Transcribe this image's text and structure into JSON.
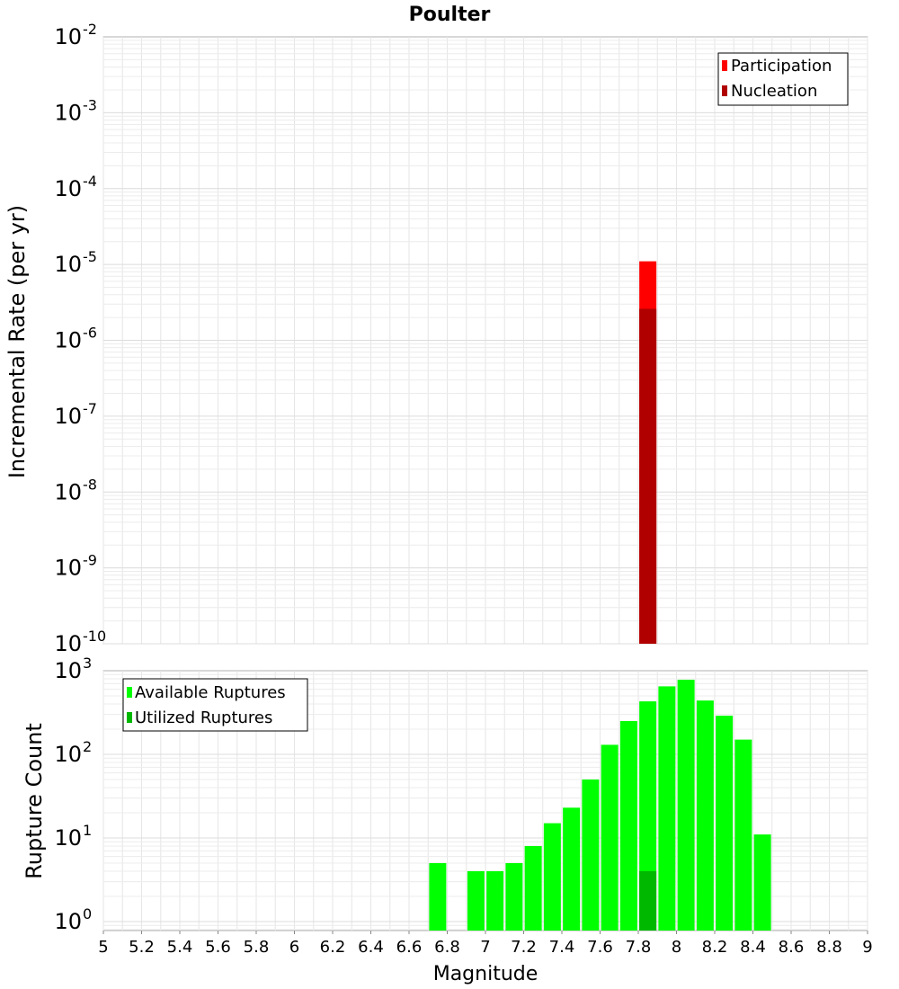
{
  "chart_data": [
    {
      "type": "bar",
      "title": "Poulter",
      "xlabel": "",
      "ylabel": "Incremental Rate (per yr)",
      "yscale": "log",
      "ylim": [
        1e-10,
        0.01
      ],
      "xlim": [
        5,
        9
      ],
      "grid": true,
      "legend_position": "top-right",
      "yticks": [
        {
          "base": "10",
          "exp": "-2",
          "value": 0.01
        },
        {
          "base": "10",
          "exp": "-3",
          "value": 0.001
        },
        {
          "base": "10",
          "exp": "-4",
          "value": 0.0001
        },
        {
          "base": "10",
          "exp": "-5",
          "value": 1e-05
        },
        {
          "base": "10",
          "exp": "-6",
          "value": 1e-06
        },
        {
          "base": "10",
          "exp": "-7",
          "value": 1e-07
        },
        {
          "base": "10",
          "exp": "-8",
          "value": 1e-08
        },
        {
          "base": "10",
          "exp": "-9",
          "value": 1e-09
        },
        {
          "base": "10",
          "exp": "-10",
          "value": 1e-10
        }
      ],
      "series": [
        {
          "name": "Participation",
          "color": "#ff0000",
          "x": [
            7.85
          ],
          "values": [
            1.1e-05
          ]
        },
        {
          "name": "Nucleation",
          "color": "#b00000",
          "x": [
            7.85
          ],
          "values": [
            2.6e-06
          ]
        }
      ]
    },
    {
      "type": "bar",
      "title": "",
      "xlabel": "Magnitude",
      "ylabel": "Rupture Count",
      "yscale": "log",
      "ylim": [
        0.78,
        1000
      ],
      "xlim": [
        5,
        9
      ],
      "grid": true,
      "legend_position": "top-left",
      "xticks": [
        "5",
        "5.2",
        "5.4",
        "5.6",
        "5.8",
        "6",
        "6.2",
        "6.4",
        "6.6",
        "6.8",
        "7",
        "7.2",
        "7.4",
        "7.6",
        "7.8",
        "8",
        "8.2",
        "8.4",
        "8.6",
        "8.8",
        "9"
      ],
      "yticks": [
        {
          "base": "10",
          "exp": "3",
          "value": 1000
        },
        {
          "base": "10",
          "exp": "2",
          "value": 100
        },
        {
          "base": "10",
          "exp": "1",
          "value": 10
        },
        {
          "base": "10",
          "exp": "0",
          "value": 1
        }
      ],
      "series": [
        {
          "name": "Available Ruptures",
          "color": "#00ff00",
          "x": [
            6.75,
            6.95,
            7.05,
            7.15,
            7.25,
            7.35,
            7.45,
            7.55,
            7.65,
            7.75,
            7.85,
            7.95,
            8.05,
            8.15,
            8.25,
            8.35,
            8.45
          ],
          "values": [
            5,
            4,
            4,
            5,
            8,
            15,
            23,
            50,
            130,
            250,
            430,
            650,
            780,
            440,
            290,
            150,
            11
          ]
        },
        {
          "name": "Utilized Ruptures",
          "color": "#00b800",
          "x": [
            7.85
          ],
          "values": [
            4
          ]
        }
      ]
    }
  ]
}
